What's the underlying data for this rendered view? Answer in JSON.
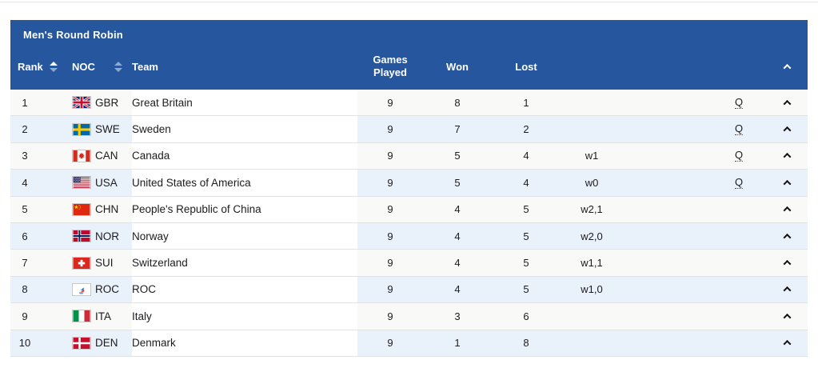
{
  "colors": {
    "header_bg": "#26569d",
    "header_text": "#ffffff",
    "row_odd_bg": "#f9f9f7",
    "row_even_bg": "#e9f1fa",
    "team_cell_bg": "#ffffff",
    "row_border": "#e2e2e2",
    "data_text": "#1c1c1e",
    "sort_active": "#ffffff",
    "sort_inactive": "#8ea9cc",
    "top_divider": "#e5e5e3"
  },
  "panel": {
    "title": "Men's Round Robin"
  },
  "columns": {
    "rank": "Rank",
    "noc": "NOC",
    "team": "Team",
    "played": "Games Played",
    "won": "Won",
    "lost": "Lost"
  },
  "icons": {
    "rank_sort": "sort-updown-icon",
    "noc_sort": "sort-updown-icon",
    "header_caret": "chevron-up-icon",
    "row_caret": "chevron-up-icon"
  },
  "rows": [
    {
      "rank": "1",
      "noc": "GBR",
      "flag_icon": "flag-gbr",
      "team": "Great Britain",
      "played": "9",
      "won": "8",
      "lost": "1",
      "tiebreak": "",
      "qualified": "Q"
    },
    {
      "rank": "2",
      "noc": "SWE",
      "flag_icon": "flag-swe",
      "team": "Sweden",
      "played": "9",
      "won": "7",
      "lost": "2",
      "tiebreak": "",
      "qualified": "Q"
    },
    {
      "rank": "3",
      "noc": "CAN",
      "flag_icon": "flag-can",
      "team": "Canada",
      "played": "9",
      "won": "5",
      "lost": "4",
      "tiebreak": "w1",
      "qualified": "Q"
    },
    {
      "rank": "4",
      "noc": "USA",
      "flag_icon": "flag-usa",
      "team": "United States of America",
      "played": "9",
      "won": "5",
      "lost": "4",
      "tiebreak": "w0",
      "qualified": "Q"
    },
    {
      "rank": "5",
      "noc": "CHN",
      "flag_icon": "flag-chn",
      "team": "People's Republic of China",
      "played": "9",
      "won": "4",
      "lost": "5",
      "tiebreak": "w2,1",
      "qualified": ""
    },
    {
      "rank": "6",
      "noc": "NOR",
      "flag_icon": "flag-nor",
      "team": "Norway",
      "played": "9",
      "won": "4",
      "lost": "5",
      "tiebreak": "w2,0",
      "qualified": ""
    },
    {
      "rank": "7",
      "noc": "SUI",
      "flag_icon": "flag-sui",
      "team": "Switzerland",
      "played": "9",
      "won": "4",
      "lost": "5",
      "tiebreak": "w1,1",
      "qualified": ""
    },
    {
      "rank": "8",
      "noc": "ROC",
      "flag_icon": "flag-roc",
      "team": "ROC",
      "played": "9",
      "won": "4",
      "lost": "5",
      "tiebreak": "w1,0",
      "qualified": ""
    },
    {
      "rank": "9",
      "noc": "ITA",
      "flag_icon": "flag-ita",
      "team": "Italy",
      "played": "9",
      "won": "3",
      "lost": "6",
      "tiebreak": "",
      "qualified": ""
    },
    {
      "rank": "10",
      "noc": "DEN",
      "flag_icon": "flag-den",
      "team": "Denmark",
      "played": "9",
      "won": "1",
      "lost": "8",
      "tiebreak": "",
      "qualified": ""
    }
  ]
}
